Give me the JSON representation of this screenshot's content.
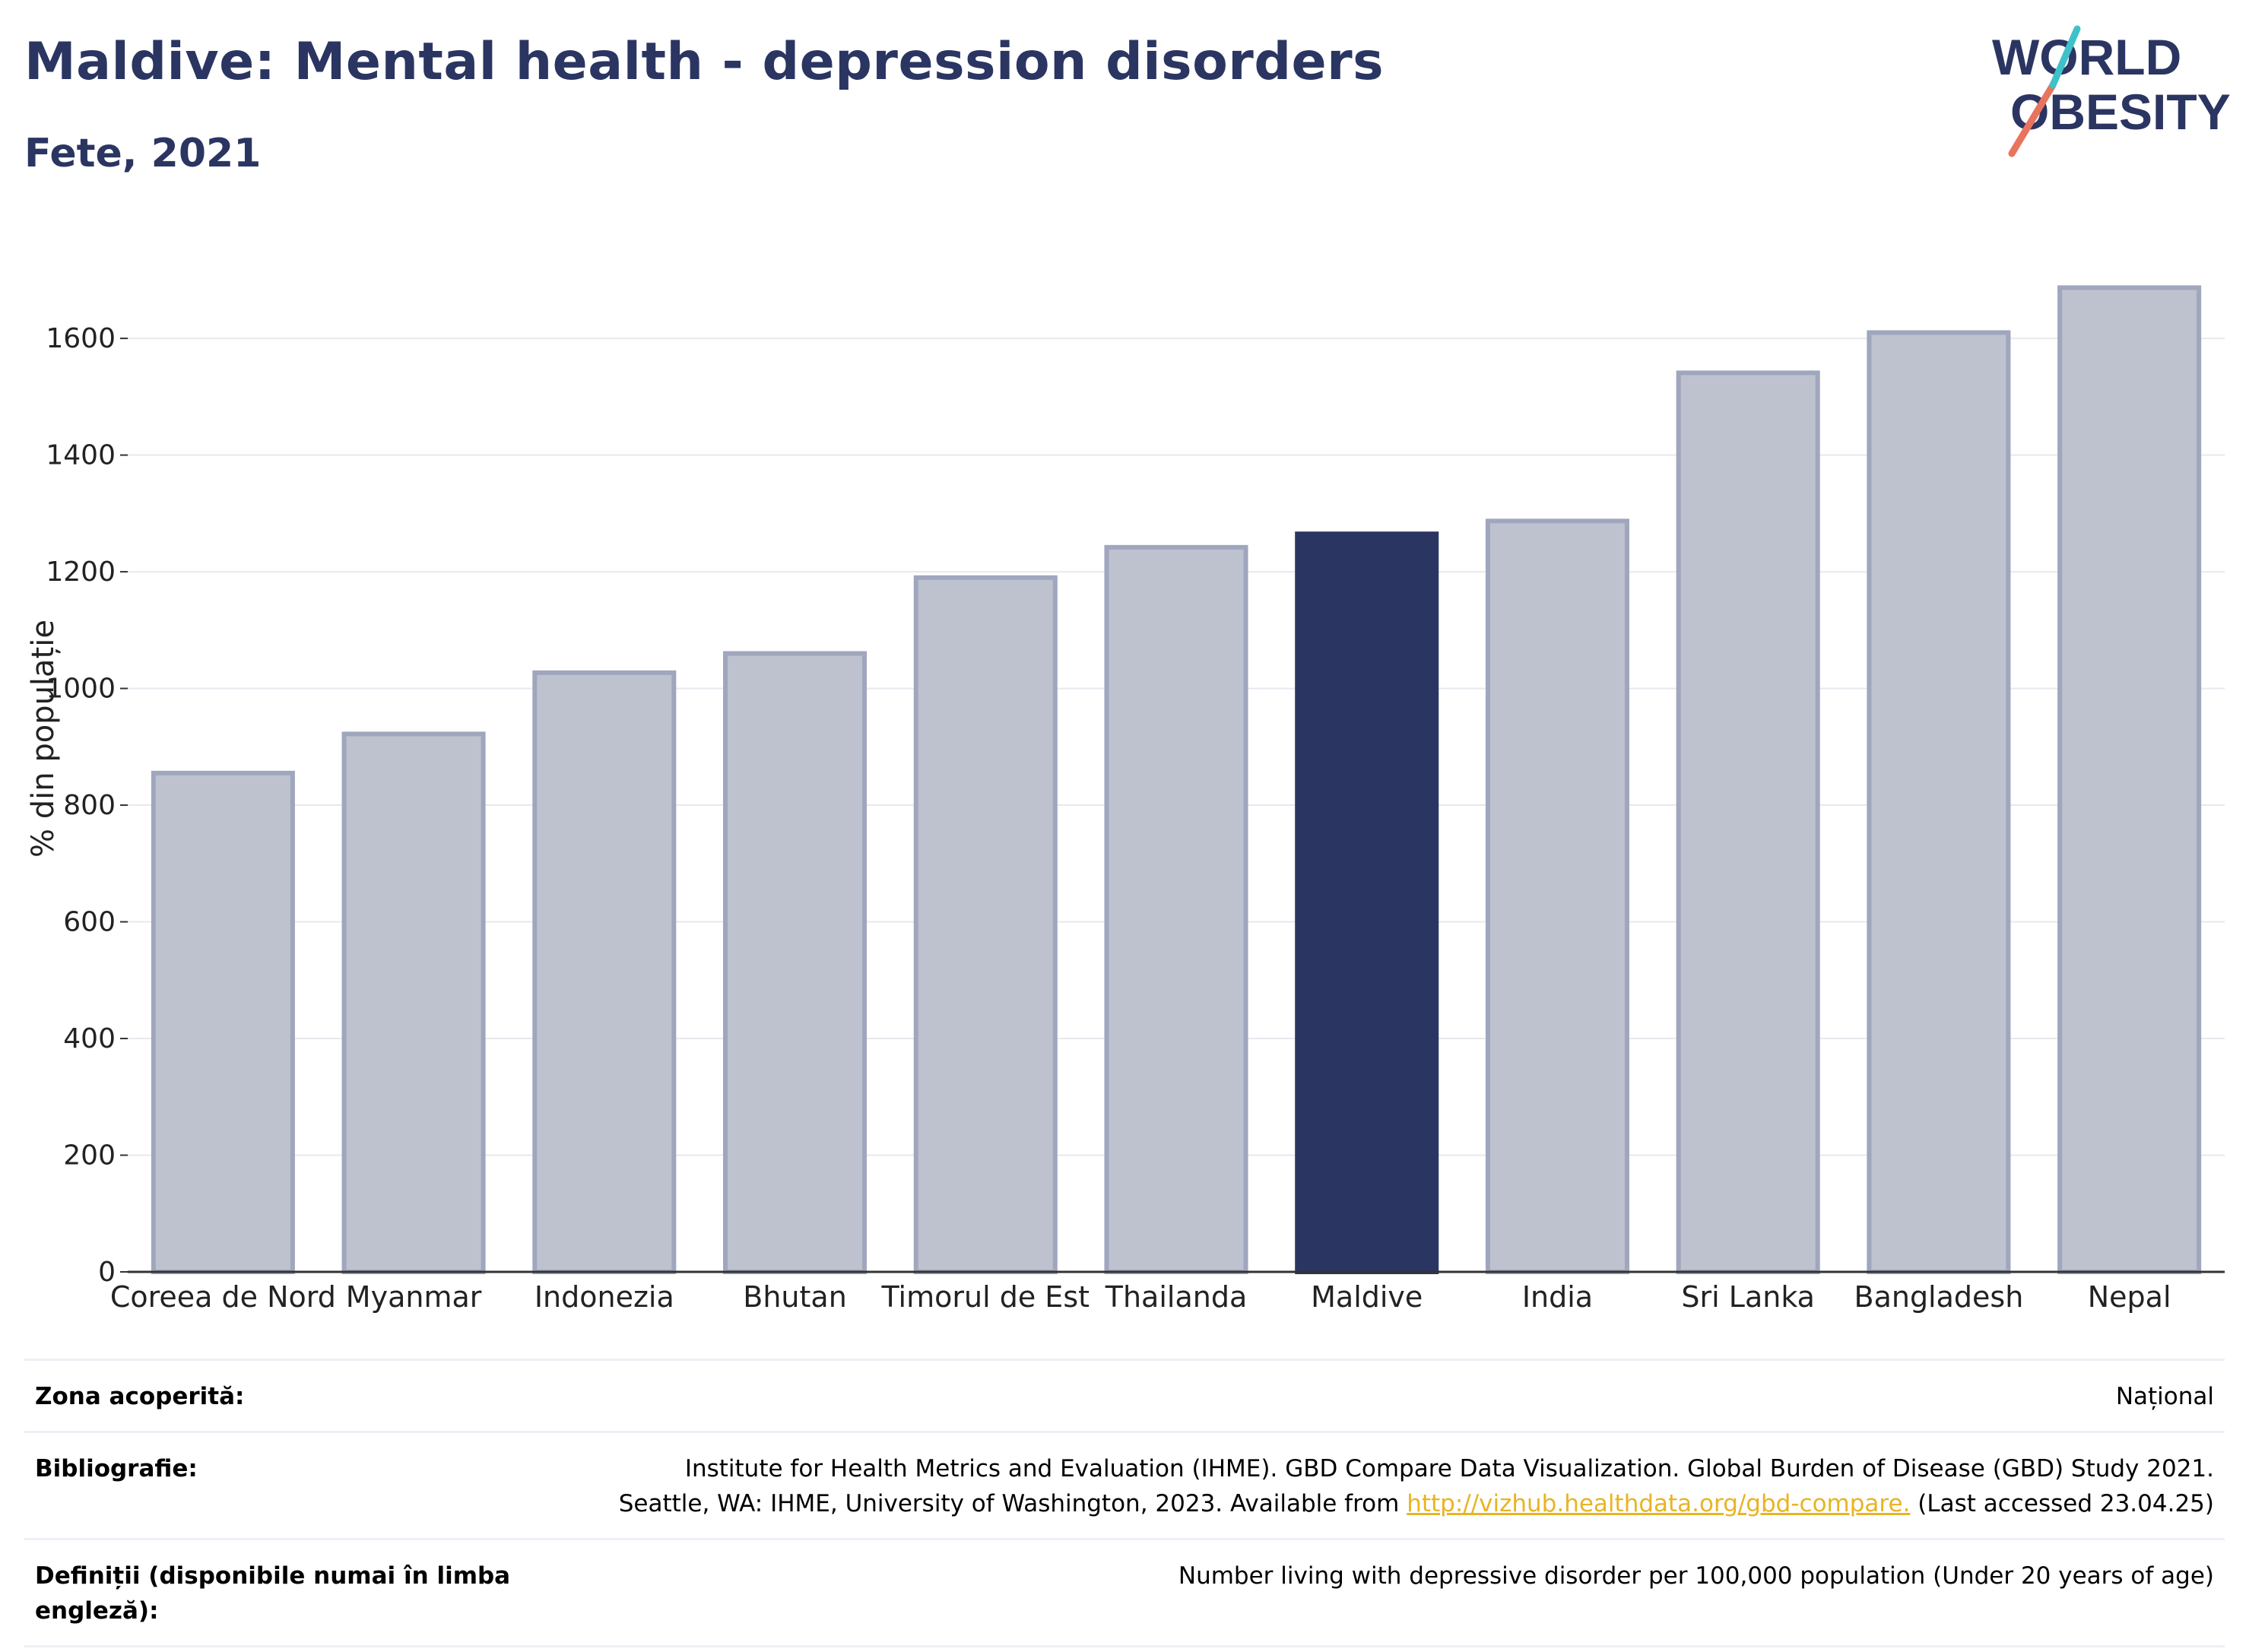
{
  "header": {
    "title": "Maldive: Mental health - depression disorders",
    "subtitle": "Fete, 2021"
  },
  "logo": {
    "line1": "WORLD",
    "line2": "OBESITY"
  },
  "colors": {
    "bar": "#bec2cf",
    "bar_border": "#9fa6bd",
    "highlight": "#2b3562",
    "grid": "#e8e8ee",
    "axis": "#333333"
  },
  "chart_data": {
    "type": "bar",
    "categories": [
      "Coreea de Nord",
      "Myanmar",
      "Indonezia",
      "Bhutan",
      "Timorul de Est",
      "Thailanda",
      "Maldive",
      "India",
      "Sri Lanka",
      "Bangladesh",
      "Nepal"
    ],
    "values": [
      855,
      922,
      1027,
      1060,
      1190,
      1242,
      1265,
      1287,
      1541,
      1610,
      1687
    ],
    "highlight": "Maldive",
    "ylabel": "% din populație",
    "xlabel": "",
    "ylim": [
      0,
      1750
    ],
    "yticks": [
      0,
      200,
      400,
      600,
      800,
      1000,
      1200,
      1400,
      1600
    ],
    "grid": true
  },
  "footer": {
    "coverage_label": "Zona acoperită:",
    "coverage_value": "Național",
    "bibliography_label": "Bibliografie:",
    "bibliography_line1": "Institute for Health Metrics and Evaluation (IHME). GBD Compare Data Visualization. Global Burden of Disease (GBD) Study 2021.",
    "bibliography_line2_pre": "Seattle, WA: IHME, University of Washington, 2023. Available from ",
    "bibliography_link": "http://vizhub.healthdata.org/gbd-compare.",
    "bibliography_line2_post": " (Last accessed 23.04.25)",
    "definitions_label": "Definiții (disponibile numai în limba engleză):",
    "definitions_value": "Number living with depressive disorder per 100,000 population (Under 20 years of age)"
  }
}
